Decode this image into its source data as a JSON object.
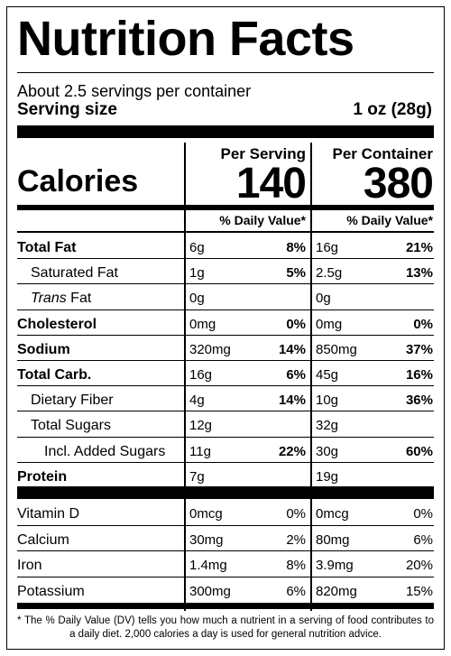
{
  "title": "Nutrition Facts",
  "servings_per_container": "About 2.5 servings per container",
  "serving_size_label": "Serving size",
  "serving_size_value": "1 oz (28g)",
  "columns": {
    "per_serving": "Per Serving",
    "per_container": "Per Container"
  },
  "calories": {
    "label": "Calories",
    "per_serving": "140",
    "per_container": "380"
  },
  "daily_value_header": "% Daily Value*",
  "nutrients": [
    {
      "name": "Total Fat",
      "serving_amount": "6g",
      "serving_dv": "8%",
      "container_amount": "16g",
      "container_dv": "21%"
    },
    {
      "name": "Saturated Fat",
      "serving_amount": "1g",
      "serving_dv": "5%",
      "container_amount": "2.5g",
      "container_dv": "13%"
    },
    {
      "name_italic": "Trans",
      "name_rest": " Fat",
      "serving_amount": "0g",
      "serving_dv": "",
      "container_amount": "0g",
      "container_dv": ""
    },
    {
      "name": "Cholesterol",
      "serving_amount": "0mg",
      "serving_dv": "0%",
      "container_amount": "0mg",
      "container_dv": "0%"
    },
    {
      "name": "Sodium",
      "serving_amount": "320mg",
      "serving_dv": "14%",
      "container_amount": "850mg",
      "container_dv": "37%"
    },
    {
      "name": "Total Carb.",
      "serving_amount": "16g",
      "serving_dv": "6%",
      "container_amount": "45g",
      "container_dv": "16%"
    },
    {
      "name": "Dietary Fiber",
      "serving_amount": "4g",
      "serving_dv": "14%",
      "container_amount": "10g",
      "container_dv": "36%"
    },
    {
      "name": "Total Sugars",
      "serving_amount": "12g",
      "serving_dv": "",
      "container_amount": "32g",
      "container_dv": ""
    },
    {
      "name": "Incl. Added Sugars",
      "serving_amount": "11g",
      "serving_dv": "22%",
      "container_amount": "30g",
      "container_dv": "60%"
    },
    {
      "name": "Protein",
      "serving_amount": "7g",
      "serving_dv": "",
      "container_amount": "19g",
      "container_dv": ""
    }
  ],
  "vitamins": [
    {
      "name": "Vitamin D",
      "serving_amount": "0mcg",
      "serving_dv": "0%",
      "container_amount": "0mcg",
      "container_dv": "0%"
    },
    {
      "name": "Calcium",
      "serving_amount": "30mg",
      "serving_dv": "2%",
      "container_amount": "80mg",
      "container_dv": "6%"
    },
    {
      "name": "Iron",
      "serving_amount": "1.4mg",
      "serving_dv": "8%",
      "container_amount": "3.9mg",
      "container_dv": "20%"
    },
    {
      "name": "Potassium",
      "serving_amount": "300mg",
      "serving_dv": "6%",
      "container_amount": "820mg",
      "container_dv": "15%"
    }
  ],
  "footnote": "* The % Daily Value (DV) tells you how much a nutrient in a serving of food contributes to a daily diet. 2,000 calories a day is used for general nutrition advice."
}
